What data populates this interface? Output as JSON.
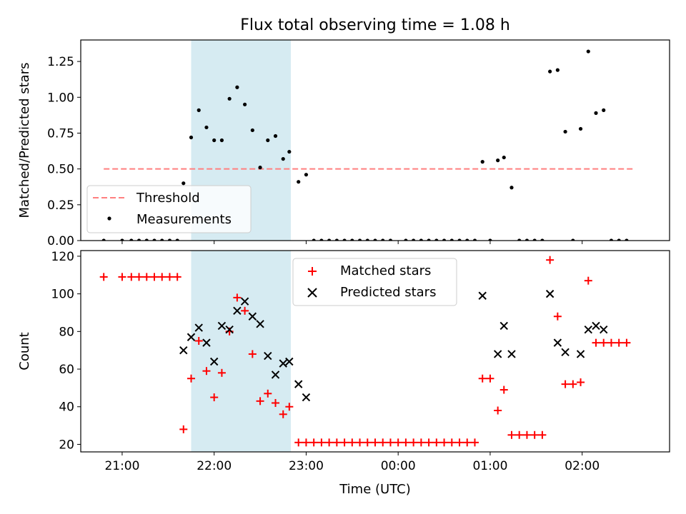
{
  "title": "Flux total observing time = 1.08 h",
  "colors": {
    "threshold": "#ff7f7f",
    "shade": "#add8e6",
    "matched": "#ff0000",
    "predicted": "#000000",
    "measure": "#000000"
  },
  "chart_data": [
    {
      "type": "scatter",
      "title": "Flux total observing time = 1.08 h",
      "xlabel": "",
      "ylabel": "Matched/Predicted stars",
      "xlim": [
        "20:33",
        "02:57"
      ],
      "ylim": [
        0,
        1.4
      ],
      "yticks": [
        "0.00",
        "0.25",
        "0.50",
        "0.75",
        "1.00",
        "1.25"
      ],
      "xticks": [
        "21:00",
        "22:00",
        "23:00",
        "00:00",
        "01:00",
        "02:00"
      ],
      "shaded_interval": [
        "21:45",
        "22:50"
      ],
      "legend": {
        "placement": "lower-left",
        "entries": [
          "Threshold",
          "Measurements"
        ]
      },
      "threshold": {
        "name": "Threshold",
        "value": 0.5,
        "x_range": [
          "20:48",
          "02:33"
        ],
        "style": "dashed"
      },
      "series": [
        {
          "name": "Measurements",
          "points": [
            [
              "20:48",
              0.0
            ],
            [
              "21:00",
              0.0
            ],
            [
              "21:06",
              0.0
            ],
            [
              "21:11",
              0.0
            ],
            [
              "21:16",
              0.0
            ],
            [
              "21:21",
              0.0
            ],
            [
              "21:26",
              0.0
            ],
            [
              "21:31",
              0.0
            ],
            [
              "21:36",
              0.0
            ],
            [
              "21:40",
              0.4
            ],
            [
              "21:45",
              0.72
            ],
            [
              "21:50",
              0.91
            ],
            [
              "21:55",
              0.79
            ],
            [
              "22:00",
              0.7
            ],
            [
              "22:05",
              0.7
            ],
            [
              "22:10",
              0.99
            ],
            [
              "22:15",
              1.07
            ],
            [
              "22:20",
              0.95
            ],
            [
              "22:25",
              0.77
            ],
            [
              "22:30",
              0.51
            ],
            [
              "22:35",
              0.7
            ],
            [
              "22:40",
              0.73
            ],
            [
              "22:45",
              0.57
            ],
            [
              "22:49",
              0.62
            ],
            [
              "22:55",
              0.41
            ],
            [
              "23:00",
              0.46
            ],
            [
              "23:05",
              0.0
            ],
            [
              "23:10",
              0.0
            ],
            [
              "23:15",
              0.0
            ],
            [
              "23:20",
              0.0
            ],
            [
              "23:25",
              0.0
            ],
            [
              "23:30",
              0.0
            ],
            [
              "23:35",
              0.0
            ],
            [
              "23:40",
              0.0
            ],
            [
              "23:45",
              0.0
            ],
            [
              "23:50",
              0.0
            ],
            [
              "23:55",
              0.0
            ],
            [
              "00:05",
              0.0
            ],
            [
              "00:10",
              0.0
            ],
            [
              "00:15",
              0.0
            ],
            [
              "00:20",
              0.0
            ],
            [
              "00:25",
              0.0
            ],
            [
              "00:30",
              0.0
            ],
            [
              "00:35",
              0.0
            ],
            [
              "00:40",
              0.0
            ],
            [
              "00:45",
              0.0
            ],
            [
              "00:50",
              0.0
            ],
            [
              "00:55",
              0.55
            ],
            [
              "01:00",
              0.0
            ],
            [
              "01:05",
              0.56
            ],
            [
              "01:09",
              0.58
            ],
            [
              "01:14",
              0.37
            ],
            [
              "01:19",
              0.0
            ],
            [
              "01:24",
              0.0
            ],
            [
              "01:29",
              0.0
            ],
            [
              "01:34",
              0.0
            ],
            [
              "01:39",
              1.18
            ],
            [
              "01:44",
              1.19
            ],
            [
              "01:49",
              0.76
            ],
            [
              "01:54",
              0.0
            ],
            [
              "01:59",
              0.78
            ],
            [
              "02:04",
              1.32
            ],
            [
              "02:09",
              0.89
            ],
            [
              "02:14",
              0.91
            ],
            [
              "02:19",
              0.0
            ],
            [
              "02:24",
              0.0
            ],
            [
              "02:29",
              0.0
            ]
          ]
        }
      ]
    },
    {
      "type": "scatter",
      "title": "",
      "xlabel": "Time (UTC)",
      "ylabel": "Count",
      "xlim": [
        "20:33",
        "02:57"
      ],
      "ylim": [
        16,
        123
      ],
      "yticks": [
        "20",
        "40",
        "60",
        "80",
        "100",
        "120"
      ],
      "xticks": [
        "21:00",
        "22:00",
        "23:00",
        "00:00",
        "01:00",
        "02:00"
      ],
      "shaded_interval": [
        "21:45",
        "22:50"
      ],
      "legend": {
        "placement": "upper-center",
        "entries": [
          "Matched stars",
          "Predicted stars"
        ]
      },
      "series": [
        {
          "name": "Matched stars",
          "marker": "+",
          "points": [
            [
              "20:48",
              109
            ],
            [
              "21:00",
              109
            ],
            [
              "21:06",
              109
            ],
            [
              "21:11",
              109
            ],
            [
              "21:16",
              109
            ],
            [
              "21:21",
              109
            ],
            [
              "21:26",
              109
            ],
            [
              "21:31",
              109
            ],
            [
              "21:36",
              109
            ],
            [
              "21:40",
              28
            ],
            [
              "21:45",
              55
            ],
            [
              "21:50",
              75
            ],
            [
              "21:55",
              59
            ],
            [
              "22:00",
              45
            ],
            [
              "22:05",
              58
            ],
            [
              "22:10",
              80
            ],
            [
              "22:15",
              98
            ],
            [
              "22:20",
              91
            ],
            [
              "22:25",
              68
            ],
            [
              "22:30",
              43
            ],
            [
              "22:35",
              47
            ],
            [
              "22:40",
              42
            ],
            [
              "22:45",
              36
            ],
            [
              "22:49",
              40
            ],
            [
              "22:55",
              21
            ],
            [
              "23:00",
              21
            ],
            [
              "23:05",
              21
            ],
            [
              "23:10",
              21
            ],
            [
              "23:15",
              21
            ],
            [
              "23:20",
              21
            ],
            [
              "23:25",
              21
            ],
            [
              "23:30",
              21
            ],
            [
              "23:35",
              21
            ],
            [
              "23:40",
              21
            ],
            [
              "23:45",
              21
            ],
            [
              "23:50",
              21
            ],
            [
              "23:55",
              21
            ],
            [
              "00:00",
              21
            ],
            [
              "00:05",
              21
            ],
            [
              "00:10",
              21
            ],
            [
              "00:15",
              21
            ],
            [
              "00:20",
              21
            ],
            [
              "00:25",
              21
            ],
            [
              "00:30",
              21
            ],
            [
              "00:35",
              21
            ],
            [
              "00:40",
              21
            ],
            [
              "00:45",
              21
            ],
            [
              "00:50",
              21
            ],
            [
              "00:55",
              55
            ],
            [
              "01:00",
              55
            ],
            [
              "01:05",
              38
            ],
            [
              "01:09",
              49
            ],
            [
              "01:14",
              25
            ],
            [
              "01:19",
              25
            ],
            [
              "01:24",
              25
            ],
            [
              "01:29",
              25
            ],
            [
              "01:34",
              25
            ],
            [
              "01:39",
              118
            ],
            [
              "01:44",
              88
            ],
            [
              "01:49",
              52
            ],
            [
              "01:54",
              52
            ],
            [
              "01:59",
              53
            ],
            [
              "02:04",
              107
            ],
            [
              "02:09",
              74
            ],
            [
              "02:14",
              74
            ],
            [
              "02:19",
              74
            ],
            [
              "02:24",
              74
            ],
            [
              "02:29",
              74
            ]
          ]
        },
        {
          "name": "Predicted stars",
          "marker": "x",
          "points": [
            [
              "21:40",
              70
            ],
            [
              "21:45",
              77
            ],
            [
              "21:50",
              82
            ],
            [
              "21:55",
              74
            ],
            [
              "22:00",
              64
            ],
            [
              "22:05",
              83
            ],
            [
              "22:10",
              81
            ],
            [
              "22:15",
              91
            ],
            [
              "22:20",
              96
            ],
            [
              "22:25",
              88
            ],
            [
              "22:30",
              84
            ],
            [
              "22:35",
              67
            ],
            [
              "22:40",
              57
            ],
            [
              "22:45",
              63
            ],
            [
              "22:49",
              64
            ],
            [
              "22:55",
              52
            ],
            [
              "23:00",
              45
            ],
            [
              "00:55",
              99
            ],
            [
              "01:05",
              68
            ],
            [
              "01:09",
              83
            ],
            [
              "01:14",
              68
            ],
            [
              "01:39",
              100
            ],
            [
              "01:44",
              74
            ],
            [
              "01:49",
              69
            ],
            [
              "01:59",
              68
            ],
            [
              "02:04",
              81
            ],
            [
              "02:09",
              83
            ],
            [
              "02:14",
              81
            ]
          ]
        }
      ]
    }
  ]
}
